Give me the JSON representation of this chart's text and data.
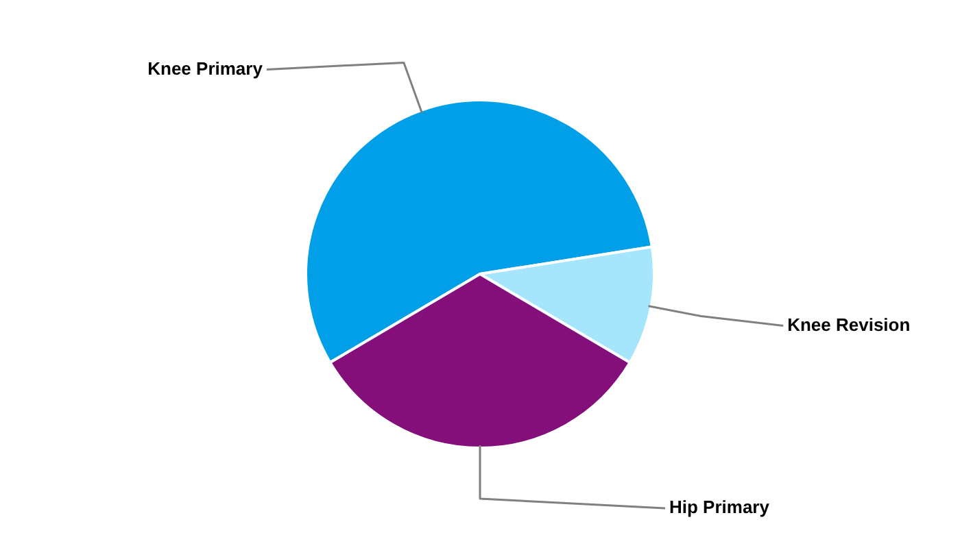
{
  "chart_data": {
    "type": "pie",
    "categories": [
      "Knee Primary",
      "Knee Revision",
      "Hip Primary"
    ],
    "values": [
      56,
      11,
      33
    ],
    "colors": [
      "#009fe8",
      "#a6e6fc",
      "#850f7a"
    ],
    "legend": false
  }
}
